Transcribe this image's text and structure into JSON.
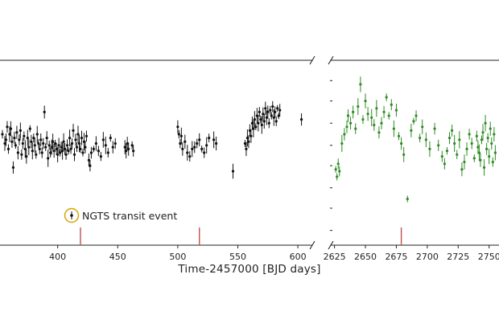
{
  "chart_data": [
    {
      "type": "scatter",
      "panel": "left",
      "xlabel": "Time-2457000 [BJD days]",
      "xlim": [
        352,
        612
      ],
      "ylim": [
        0,
        1
      ],
      "xticks": [
        400,
        450,
        500,
        550,
        600
      ],
      "annotation": "NGTS transit event",
      "marker_color": "#111111",
      "transit_color": "#c0504d",
      "annotation_ring_color": "#d9a400",
      "transit_events": [
        419,
        518
      ],
      "series": [
        {
          "points": [
            [
              354,
              0.6
            ],
            [
              356,
              0.55
            ],
            [
              357,
              0.57
            ],
            [
              358,
              0.64
            ],
            [
              359,
              0.52
            ],
            [
              360,
              0.6
            ],
            [
              361,
              0.63
            ],
            [
              362,
              0.56
            ],
            [
              363,
              0.42
            ],
            [
              364,
              0.58
            ],
            [
              365,
              0.54
            ],
            [
              366,
              0.61
            ],
            [
              367,
              0.5
            ],
            [
              368,
              0.57
            ],
            [
              369,
              0.62
            ],
            [
              370,
              0.49
            ],
            [
              371,
              0.55
            ],
            [
              372,
              0.59
            ],
            [
              373,
              0.52
            ],
            [
              374,
              0.48
            ],
            [
              375,
              0.58
            ],
            [
              376,
              0.53
            ],
            [
              377,
              0.63
            ],
            [
              378,
              0.56
            ],
            [
              379,
              0.51
            ],
            [
              380,
              0.58
            ],
            [
              381,
              0.54
            ],
            [
              382,
              0.49
            ],
            [
              383,
              0.6
            ],
            [
              384,
              0.55
            ],
            [
              385,
              0.52
            ],
            [
              386,
              0.57
            ],
            [
              387,
              0.5
            ],
            [
              388,
              0.55
            ],
            [
              389,
              0.72
            ],
            [
              390,
              0.53
            ],
            [
              391,
              0.58
            ],
            [
              392,
              0.47
            ],
            [
              393,
              0.54
            ],
            [
              394,
              0.5
            ],
            [
              395,
              0.53
            ],
            [
              396,
              0.56
            ],
            [
              397,
              0.51
            ],
            [
              398,
              0.55
            ],
            [
              399,
              0.52
            ],
            [
              400,
              0.49
            ],
            [
              401,
              0.54
            ],
            [
              402,
              0.5
            ],
            [
              403,
              0.53
            ],
            [
              404,
              0.51
            ],
            [
              405,
              0.56
            ],
            [
              406,
              0.52
            ],
            [
              407,
              0.49
            ],
            [
              408,
              0.54
            ],
            [
              409,
              0.51
            ],
            [
              410,
              0.58
            ],
            [
              411,
              0.52
            ],
            [
              412,
              0.55
            ],
            [
              413,
              0.62
            ],
            [
              414,
              0.49
            ],
            [
              415,
              0.57
            ],
            [
              416,
              0.53
            ],
            [
              417,
              0.6
            ],
            [
              418,
              0.55
            ],
            [
              419,
              0.52
            ],
            [
              420,
              0.58
            ],
            [
              421,
              0.5
            ],
            [
              422,
              0.56
            ],
            [
              423,
              0.53
            ],
            [
              424,
              0.59
            ],
            [
              426,
              0.46
            ],
            [
              427,
              0.43
            ],
            [
              428,
              0.5
            ],
            [
              430,
              0.52
            ],
            [
              432,
              0.55
            ],
            [
              434,
              0.51
            ],
            [
              436,
              0.48
            ],
            [
              438,
              0.57
            ],
            [
              440,
              0.54
            ],
            [
              442,
              0.5
            ],
            [
              444,
              0.58
            ],
            [
              446,
              0.53
            ],
            [
              448,
              0.55
            ],
            [
              456,
              0.53
            ],
            [
              457,
              0.51
            ],
            [
              458,
              0.55
            ],
            [
              459,
              0.52
            ],
            [
              462,
              0.54
            ],
            [
              463,
              0.51
            ],
            [
              500,
              0.64
            ],
            [
              501,
              0.6
            ],
            [
              502,
              0.55
            ],
            [
              503,
              0.59
            ],
            [
              504,
              0.52
            ],
            [
              506,
              0.56
            ],
            [
              508,
              0.5
            ],
            [
              510,
              0.48
            ],
            [
              512,
              0.52
            ],
            [
              514,
              0.53
            ],
            [
              516,
              0.55
            ],
            [
              518,
              0.57
            ],
            [
              520,
              0.52
            ],
            [
              522,
              0.5
            ],
            [
              524,
              0.54
            ],
            [
              526,
              0.58
            ],
            [
              530,
              0.57
            ],
            [
              532,
              0.55
            ],
            [
              546,
              0.4
            ],
            [
              556,
              0.55
            ],
            [
              557,
              0.52
            ],
            [
              558,
              0.58
            ],
            [
              559,
              0.56
            ],
            [
              560,
              0.62
            ],
            [
              561,
              0.59
            ],
            [
              562,
              0.66
            ],
            [
              563,
              0.63
            ],
            [
              564,
              0.68
            ],
            [
              565,
              0.64
            ],
            [
              566,
              0.7
            ],
            [
              567,
              0.66
            ],
            [
              568,
              0.72
            ],
            [
              569,
              0.68
            ],
            [
              570,
              0.65
            ],
            [
              571,
              0.71
            ],
            [
              572,
              0.67
            ],
            [
              573,
              0.74
            ],
            [
              574,
              0.69
            ],
            [
              575,
              0.72
            ],
            [
              576,
              0.66
            ],
            [
              577,
              0.73
            ],
            [
              578,
              0.7
            ],
            [
              579,
              0.75
            ],
            [
              580,
              0.69
            ],
            [
              581,
              0.72
            ],
            [
              582,
              0.67
            ],
            [
              583,
              0.74
            ],
            [
              584,
              0.7
            ],
            [
              585,
              0.73
            ],
            [
              603,
              0.68
            ]
          ]
        }
      ]
    },
    {
      "type": "scatter",
      "panel": "right",
      "xlim": [
        2622,
        2758
      ],
      "ylim": [
        0,
        1
      ],
      "xticks": [
        2625,
        2650,
        2675,
        2700,
        2725,
        2750
      ],
      "marker_color": "#2e8b22",
      "transit_color": "#c0504d",
      "transit_events": [
        2679
      ],
      "series": [
        {
          "points": [
            [
              2626,
              0.41
            ],
            [
              2627,
              0.37
            ],
            [
              2628,
              0.44
            ],
            [
              2629,
              0.4
            ],
            [
              2631,
              0.55
            ],
            [
              2633,
              0.6
            ],
            [
              2635,
              0.64
            ],
            [
              2636,
              0.7
            ],
            [
              2638,
              0.66
            ],
            [
              2640,
              0.72
            ],
            [
              2642,
              0.63
            ],
            [
              2644,
              0.75
            ],
            [
              2646,
              0.87
            ],
            [
              2648,
              0.68
            ],
            [
              2650,
              0.78
            ],
            [
              2652,
              0.71
            ],
            [
              2655,
              0.69
            ],
            [
              2657,
              0.65
            ],
            [
              2659,
              0.74
            ],
            [
              2661,
              0.61
            ],
            [
              2663,
              0.66
            ],
            [
              2665,
              0.72
            ],
            [
              2667,
              0.8
            ],
            [
              2669,
              0.7
            ],
            [
              2671,
              0.76
            ],
            [
              2673,
              0.63
            ],
            [
              2675,
              0.73
            ],
            [
              2677,
              0.59
            ],
            [
              2679,
              0.55
            ],
            [
              2681,
              0.49
            ],
            [
              2684,
              0.25
            ],
            [
              2687,
              0.62
            ],
            [
              2689,
              0.67
            ],
            [
              2691,
              0.7
            ],
            [
              2694,
              0.58
            ],
            [
              2696,
              0.64
            ],
            [
              2699,
              0.57
            ],
            [
              2702,
              0.52
            ],
            [
              2706,
              0.63
            ],
            [
              2709,
              0.54
            ],
            [
              2712,
              0.48
            ],
            [
              2714,
              0.44
            ],
            [
              2716,
              0.51
            ],
            [
              2718,
              0.58
            ],
            [
              2720,
              0.62
            ],
            [
              2722,
              0.55
            ],
            [
              2724,
              0.49
            ],
            [
              2726,
              0.57
            ],
            [
              2728,
              0.41
            ],
            [
              2730,
              0.45
            ],
            [
              2732,
              0.52
            ],
            [
              2734,
              0.6
            ],
            [
              2736,
              0.55
            ],
            [
              2738,
              0.47
            ],
            [
              2740,
              0.59
            ],
            [
              2741,
              0.53
            ],
            [
              2742,
              0.5
            ],
            [
              2743,
              0.46
            ],
            [
              2744,
              0.57
            ],
            [
              2745,
              0.61
            ],
            [
              2746,
              0.42
            ],
            [
              2747,
              0.66
            ],
            [
              2748,
              0.52
            ],
            [
              2749,
              0.58
            ],
            [
              2750,
              0.48
            ],
            [
              2751,
              0.63
            ],
            [
              2752,
              0.55
            ],
            [
              2753,
              0.45
            ],
            [
              2754,
              0.6
            ],
            [
              2755,
              0.5
            ]
          ]
        }
      ]
    }
  ]
}
